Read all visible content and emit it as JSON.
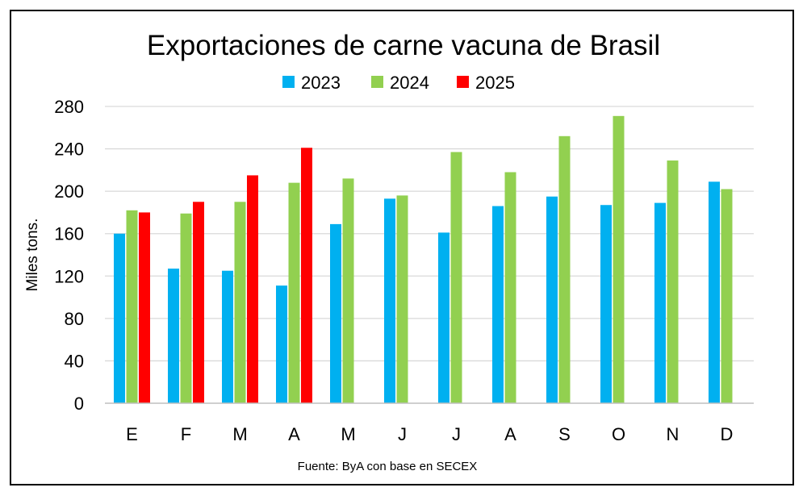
{
  "chart_data": {
    "type": "bar",
    "title": "Exportaciones de carne vacuna de Brasil",
    "ylabel": "Miles tons.",
    "xlabel": "",
    "source": "Fuente: ByA con base en SECEX",
    "categories": [
      "E",
      "F",
      "M",
      "A",
      "M",
      "J",
      "J",
      "A",
      "S",
      "O",
      "N",
      "D"
    ],
    "ylim": [
      0,
      280
    ],
    "yticks": [
      0,
      40,
      80,
      120,
      160,
      200,
      240,
      280
    ],
    "grid": true,
    "legend_position": "top",
    "series": [
      {
        "name": "2023",
        "color": "#00b0f0",
        "values": [
          160,
          127,
          125,
          111,
          169,
          193,
          161,
          186,
          195,
          187,
          189,
          209
        ]
      },
      {
        "name": "2024",
        "color": "#92d050",
        "values": [
          182,
          179,
          190,
          208,
          212,
          196,
          237,
          218,
          252,
          271,
          229,
          202
        ]
      },
      {
        "name": "2025",
        "color": "#ff0000",
        "values": [
          180,
          190,
          215,
          241,
          null,
          null,
          null,
          null,
          null,
          null,
          null,
          null
        ]
      }
    ]
  }
}
